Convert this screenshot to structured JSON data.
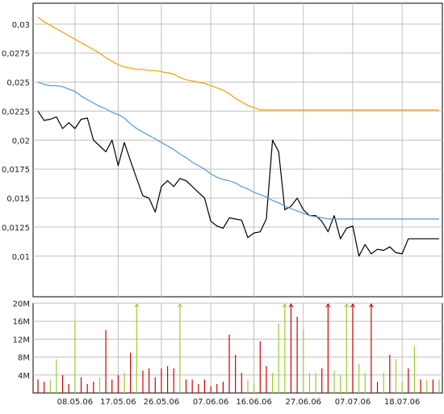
{
  "chart_data": [
    {
      "type": "line",
      "title": "",
      "xlabel": "",
      "ylabel": "",
      "ylim": [
        0.0065,
        0.0318
      ],
      "grid": true,
      "y_ticks": [
        "0,03",
        "0,0275",
        "0,025",
        "0,0225",
        "0,02",
        "0,0175",
        "0,015",
        "0,0125",
        "0,01"
      ],
      "y_tick_values": [
        0.03,
        0.0275,
        0.025,
        0.0225,
        0.02,
        0.0175,
        0.015,
        0.0125,
        0.01
      ],
      "x_ticks": [
        "08.05.06",
        "17.05.06",
        "26.05.06",
        "07.06.06",
        "16.06.06",
        "27.06.06",
        "07.07.06",
        "18.07.06"
      ],
      "x_tick_index": [
        6,
        13,
        20,
        28,
        35,
        43,
        51,
        59
      ],
      "n_points": 66,
      "colors": {
        "price": "#000000",
        "ma_short": "#4f9ad6",
        "ma_long": "#f0a000",
        "grid": "#c0c0c0"
      },
      "series": [
        {
          "key": "price",
          "values": [
            0.0225,
            0.0217,
            0.0218,
            0.022,
            0.021,
            0.0215,
            0.021,
            0.0218,
            0.0219,
            0.02,
            0.0195,
            0.019,
            0.02,
            0.0178,
            0.0198,
            0.0182,
            0.0167,
            0.0152,
            0.015,
            0.0138,
            0.016,
            0.0165,
            0.016,
            0.0167,
            0.0165,
            0.016,
            0.0155,
            0.015,
            0.013,
            0.0126,
            0.0124,
            0.0133,
            0.0132,
            0.0131,
            0.0116,
            0.012,
            0.0121,
            0.0132,
            0.02,
            0.019,
            0.014,
            0.0143,
            0.015,
            0.014,
            0.0135,
            0.0135,
            0.013,
            0.0121,
            0.0135,
            0.0115,
            0.0124,
            0.0126,
            0.01,
            0.011,
            0.0102,
            0.0106,
            0.0105,
            0.0108,
            0.0103,
            0.0102,
            0.0115,
            0.0115,
            0.0115,
            0.0115,
            0.0115,
            0.0115
          ]
        },
        {
          "key": "ma_short",
          "values": [
            0.025,
            0.0248,
            0.0247,
            0.0247,
            0.0246,
            0.0244,
            0.0242,
            0.0238,
            0.0235,
            0.0232,
            0.0229,
            0.0227,
            0.0224,
            0.0222,
            0.0219,
            0.0214,
            0.021,
            0.0207,
            0.0204,
            0.0201,
            0.0198,
            0.0195,
            0.0192,
            0.0188,
            0.0185,
            0.0181,
            0.0178,
            0.0175,
            0.0171,
            0.0168,
            0.0166,
            0.0165,
            0.0163,
            0.016,
            0.0158,
            0.0155,
            0.0153,
            0.0151,
            0.0148,
            0.0146,
            0.0143,
            0.0141,
            0.0139,
            0.0137,
            0.0135,
            0.0134,
            0.0133,
            0.0132,
            0.0132,
            0.0132,
            0.0132,
            0.0132,
            0.0132,
            0.0132,
            0.0132,
            0.0132,
            0.0132,
            0.0132,
            0.0132,
            0.0132,
            0.0132,
            0.0132,
            0.0132,
            0.0132,
            0.0132,
            0.0132
          ]
        },
        {
          "key": "ma_long",
          "values": [
            0.0306,
            0.0302,
            0.0299,
            0.0296,
            0.0293,
            0.029,
            0.0287,
            0.0284,
            0.0281,
            0.0278,
            0.0275,
            0.0271,
            0.0268,
            0.0265,
            0.0263,
            0.0262,
            0.0261,
            0.0261,
            0.026,
            0.026,
            0.0259,
            0.0258,
            0.0257,
            0.0254,
            0.0252,
            0.0251,
            0.025,
            0.0249,
            0.0247,
            0.0245,
            0.0243,
            0.024,
            0.0236,
            0.0233,
            0.023,
            0.0228,
            0.0226,
            0.0226,
            0.0226,
            0.0226,
            0.0226,
            0.0226,
            0.0226,
            0.0226,
            0.0226,
            0.0226,
            0.0226,
            0.0226,
            0.0226,
            0.0226,
            0.0226,
            0.0226,
            0.0226,
            0.0226,
            0.0226,
            0.0226,
            0.0226,
            0.0226,
            0.0226,
            0.0226,
            0.0226,
            0.0226,
            0.0226,
            0.0226,
            0.0226,
            0.0226
          ]
        }
      ]
    },
    {
      "type": "bar",
      "title": "",
      "ylim": [
        0,
        20
      ],
      "grid": true,
      "y_ticks": [
        "20M",
        "16M",
        "12M",
        "8M",
        "4M"
      ],
      "y_tick_values": [
        20,
        16,
        12,
        8,
        4
      ],
      "x_ticks": [
        "08.05.06",
        "17.05.06",
        "26.05.06",
        "07.06.06",
        "16.06.06",
        "27.06.06",
        "07.07.06",
        "18.07.06"
      ],
      "x_tick_index": [
        6,
        13,
        20,
        28,
        35,
        43,
        51,
        59
      ],
      "unit": "M",
      "colors": {
        "up": "#9acd32",
        "down": "#cc0000",
        "grid": "#c0c0c0"
      },
      "values": [
        3,
        2.5,
        3,
        7.5,
        4,
        2,
        16,
        3.5,
        2,
        2.5,
        3.5,
        14,
        3,
        4,
        4.5,
        9,
        20,
        5,
        5.5,
        3.5,
        5.5,
        6,
        5.5,
        20,
        3,
        3,
        2,
        3,
        1.5,
        2,
        2.5,
        13,
        8.5,
        4.5,
        3,
        2,
        11.5,
        6,
        4.5,
        15.5,
        20,
        20,
        17,
        14,
        4.5,
        4.5,
        5.5,
        20,
        5,
        4,
        20,
        20,
        6.5,
        4.5,
        20,
        2.5,
        4.5,
        8.5,
        7.5,
        2.5,
        5.5,
        10.5,
        3,
        3,
        3,
        3
      ],
      "up": [
        false,
        false,
        true,
        true,
        false,
        false,
        true,
        false,
        false,
        false,
        true,
        false,
        false,
        false,
        true,
        false,
        true,
        false,
        false,
        false,
        false,
        false,
        false,
        true,
        false,
        false,
        false,
        false,
        false,
        false,
        false,
        false,
        false,
        false,
        true,
        true,
        false,
        false,
        true,
        true,
        true,
        false,
        false,
        true,
        true,
        true,
        false,
        false,
        true,
        true,
        true,
        false,
        true,
        true,
        false,
        false,
        true,
        false,
        true,
        true,
        false,
        true,
        false,
        true,
        false,
        true
      ],
      "clipped": [
        false,
        false,
        false,
        false,
        false,
        false,
        false,
        false,
        false,
        false,
        false,
        false,
        false,
        false,
        false,
        false,
        true,
        false,
        false,
        false,
        false,
        false,
        false,
        true,
        false,
        false,
        false,
        false,
        false,
        false,
        false,
        false,
        false,
        false,
        false,
        false,
        false,
        false,
        false,
        false,
        true,
        true,
        false,
        false,
        false,
        false,
        false,
        true,
        false,
        false,
        true,
        true,
        false,
        false,
        true,
        false,
        false,
        false,
        false,
        false,
        false,
        false,
        false,
        false,
        false,
        false
      ]
    }
  ]
}
